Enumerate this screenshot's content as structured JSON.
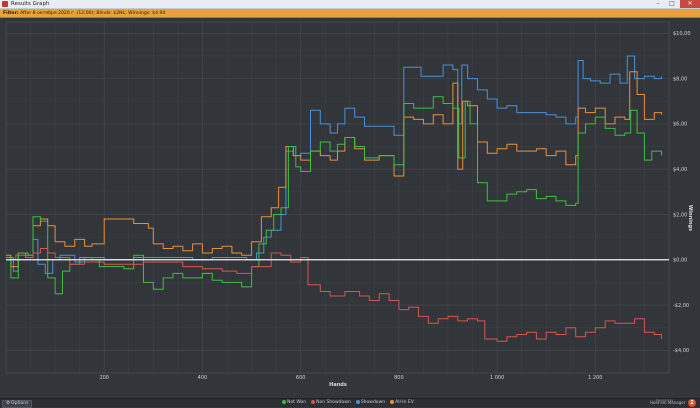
{
  "window": {
    "title": "Results Graph",
    "minimize_glyph": "–",
    "maximize_glyph": "□",
    "close_glyph": "✕"
  },
  "filter": {
    "label": "Filter:",
    "text": "After 8 октября 2020 г. (12:00); Blinds: $2NL; Winnings: $4.94"
  },
  "status": {
    "options_label": "Options",
    "brand_name": "Hold'em Manager",
    "brand_powered": "Powered by",
    "brand_logo": "2"
  },
  "legend": [
    {
      "label": "Net Won",
      "color": "#3fbf3f"
    },
    {
      "label": "Non Showdown",
      "color": "#d9534f"
    },
    {
      "label": "Showdown",
      "color": "#4a90d9"
    },
    {
      "label": "All-In EV",
      "color": "#e8903a"
    }
  ],
  "chart_data": {
    "type": "line",
    "xlabel": "Hands",
    "ylabel": "Winnings",
    "xlim": [
      0,
      1350
    ],
    "ylim": [
      -5,
      10.5
    ],
    "x_ticks": [
      {
        "v": 200,
        "label": "200"
      },
      {
        "v": 400,
        "label": "400"
      },
      {
        "v": 600,
        "label": "600"
      },
      {
        "v": 800,
        "label": "800"
      },
      {
        "v": 1000,
        "label": "1 000"
      },
      {
        "v": 1200,
        "label": "1 200"
      }
    ],
    "y_ticks": [
      {
        "v": 10,
        "label": "$10,00"
      },
      {
        "v": 8,
        "label": "$8,00"
      },
      {
        "v": 6,
        "label": "$6,00"
      },
      {
        "v": 4,
        "label": "$4,00"
      },
      {
        "v": 2,
        "label": "$2,00"
      },
      {
        "v": 0,
        "label": "$0,00"
      },
      {
        "v": -2,
        "label": "-$2,00"
      },
      {
        "v": -4,
        "label": "-$4,00"
      }
    ],
    "grid": true,
    "series": [
      {
        "name": "Showdown",
        "color": "#4a90d9",
        "points": [
          [
            0,
            0.1
          ],
          [
            15,
            -0.5
          ],
          [
            25,
            0.3
          ],
          [
            40,
            0.2
          ],
          [
            55,
            0.9
          ],
          [
            65,
            -0.2
          ],
          [
            80,
            -0.6
          ],
          [
            95,
            0.0
          ],
          [
            110,
            0.2
          ],
          [
            140,
            -0.1
          ],
          [
            160,
            0.1
          ],
          [
            200,
            0.0
          ],
          [
            260,
            0.1
          ],
          [
            300,
            0.1
          ],
          [
            340,
            0.1
          ],
          [
            380,
            0.0
          ],
          [
            420,
            0.1
          ],
          [
            450,
            0.1
          ],
          [
            490,
            0.0
          ],
          [
            510,
            0.3
          ],
          [
            525,
            1.0
          ],
          [
            540,
            1.3
          ],
          [
            560,
            2.0
          ],
          [
            570,
            4.8
          ],
          [
            585,
            4.6
          ],
          [
            600,
            4.7
          ],
          [
            620,
            6.6
          ],
          [
            640,
            6.0
          ],
          [
            660,
            5.6
          ],
          [
            675,
            6.0
          ],
          [
            690,
            6.7
          ],
          [
            710,
            6.3
          ],
          [
            730,
            5.9
          ],
          [
            760,
            5.9
          ],
          [
            790,
            5.5
          ],
          [
            810,
            8.5
          ],
          [
            830,
            8.5
          ],
          [
            845,
            8.1
          ],
          [
            865,
            8.1
          ],
          [
            890,
            8.6
          ],
          [
            910,
            8.4
          ],
          [
            920,
            6.0
          ],
          [
            928,
            8.6
          ],
          [
            940,
            8.0
          ],
          [
            960,
            7.5
          ],
          [
            980,
            7.1
          ],
          [
            1000,
            6.7
          ],
          [
            1020,
            6.8
          ],
          [
            1040,
            6.5
          ],
          [
            1080,
            6.5
          ],
          [
            1100,
            6.4
          ],
          [
            1120,
            6.3
          ],
          [
            1140,
            6.0
          ],
          [
            1160,
            6.3
          ],
          [
            1165,
            8.8
          ],
          [
            1175,
            8.0
          ],
          [
            1190,
            7.9
          ],
          [
            1210,
            7.8
          ],
          [
            1230,
            8.2
          ],
          [
            1250,
            7.8
          ],
          [
            1265,
            9.0
          ],
          [
            1280,
            8.0
          ],
          [
            1300,
            8.1
          ],
          [
            1320,
            8.0
          ],
          [
            1335,
            8.1
          ]
        ]
      },
      {
        "name": "All-In EV",
        "color": "#e8903a",
        "points": [
          [
            0,
            0.2
          ],
          [
            10,
            -0.3
          ],
          [
            25,
            0.3
          ],
          [
            40,
            0.1
          ],
          [
            55,
            1.5
          ],
          [
            70,
            1.8
          ],
          [
            85,
            1.5
          ],
          [
            100,
            0.8
          ],
          [
            120,
            0.6
          ],
          [
            140,
            0.9
          ],
          [
            160,
            0.6
          ],
          [
            175,
            0.7
          ],
          [
            200,
            1.8
          ],
          [
            230,
            1.8
          ],
          [
            260,
            1.6
          ],
          [
            290,
            1.4
          ],
          [
            300,
            0.7
          ],
          [
            320,
            0.5
          ],
          [
            340,
            0.6
          ],
          [
            360,
            0.4
          ],
          [
            380,
            0.7
          ],
          [
            400,
            0.3
          ],
          [
            420,
            0.5
          ],
          [
            440,
            0.6
          ],
          [
            460,
            0.3
          ],
          [
            480,
            0.2
          ],
          [
            500,
            0.8
          ],
          [
            520,
            1.9
          ],
          [
            540,
            2.3
          ],
          [
            555,
            3.2
          ],
          [
            570,
            5.0
          ],
          [
            585,
            4.6
          ],
          [
            600,
            4.4
          ],
          [
            620,
            4.8
          ],
          [
            640,
            4.6
          ],
          [
            660,
            4.4
          ],
          [
            675,
            4.8
          ],
          [
            690,
            5.4
          ],
          [
            710,
            4.9
          ],
          [
            730,
            4.4
          ],
          [
            760,
            4.6
          ],
          [
            790,
            3.7
          ],
          [
            810,
            6.3
          ],
          [
            830,
            6.2
          ],
          [
            850,
            6.0
          ],
          [
            870,
            6.4
          ],
          [
            890,
            6.0
          ],
          [
            910,
            7.8
          ],
          [
            920,
            4.0
          ],
          [
            930,
            7.0
          ],
          [
            940,
            6.8
          ],
          [
            960,
            5.2
          ],
          [
            980,
            4.7
          ],
          [
            1000,
            4.9
          ],
          [
            1020,
            5.1
          ],
          [
            1040,
            4.8
          ],
          [
            1080,
            4.9
          ],
          [
            1100,
            4.6
          ],
          [
            1120,
            4.8
          ],
          [
            1140,
            4.2
          ],
          [
            1160,
            4.6
          ],
          [
            1165,
            6.7
          ],
          [
            1180,
            6.5
          ],
          [
            1200,
            6.7
          ],
          [
            1220,
            6.0
          ],
          [
            1240,
            6.3
          ],
          [
            1260,
            6.2
          ],
          [
            1270,
            8.3
          ],
          [
            1285,
            7.3
          ],
          [
            1300,
            6.2
          ],
          [
            1320,
            6.5
          ],
          [
            1335,
            6.4
          ]
        ]
      },
      {
        "name": "Net Won",
        "color": "#3fbf3f",
        "points": [
          [
            0,
            0.1
          ],
          [
            10,
            -0.8
          ],
          [
            25,
            0.3
          ],
          [
            45,
            0.2
          ],
          [
            55,
            1.9
          ],
          [
            70,
            1.7
          ],
          [
            85,
            -0.8
          ],
          [
            100,
            -1.5
          ],
          [
            115,
            -0.5
          ],
          [
            130,
            -0.2
          ],
          [
            150,
            0.1
          ],
          [
            175,
            0.0
          ],
          [
            190,
            -0.3
          ],
          [
            210,
            -0.3
          ],
          [
            240,
            -0.4
          ],
          [
            260,
            0.2
          ],
          [
            280,
            -1.0
          ],
          [
            300,
            -1.3
          ],
          [
            320,
            -0.8
          ],
          [
            340,
            -0.6
          ],
          [
            360,
            -0.8
          ],
          [
            380,
            -0.8
          ],
          [
            400,
            -0.6
          ],
          [
            420,
            -0.9
          ],
          [
            440,
            -1.0
          ],
          [
            460,
            -1.0
          ],
          [
            480,
            -1.2
          ],
          [
            500,
            -0.3
          ],
          [
            515,
            0.7
          ],
          [
            530,
            1.3
          ],
          [
            545,
            2.0
          ],
          [
            560,
            2.3
          ],
          [
            575,
            5.0
          ],
          [
            590,
            4.1
          ],
          [
            600,
            3.9
          ],
          [
            620,
            4.8
          ],
          [
            640,
            5.2
          ],
          [
            660,
            4.8
          ],
          [
            675,
            5.1
          ],
          [
            690,
            5.4
          ],
          [
            710,
            5.0
          ],
          [
            730,
            4.5
          ],
          [
            760,
            4.6
          ],
          [
            790,
            4.2
          ],
          [
            810,
            6.9
          ],
          [
            830,
            6.7
          ],
          [
            850,
            6.7
          ],
          [
            870,
            7.2
          ],
          [
            890,
            6.9
          ],
          [
            910,
            6.7
          ],
          [
            922,
            4.5
          ],
          [
            935,
            7.0
          ],
          [
            945,
            6.0
          ],
          [
            960,
            3.4
          ],
          [
            980,
            2.6
          ],
          [
            1000,
            2.6
          ],
          [
            1020,
            2.9
          ],
          [
            1040,
            3.0
          ],
          [
            1060,
            3.1
          ],
          [
            1080,
            2.7
          ],
          [
            1100,
            2.8
          ],
          [
            1120,
            2.6
          ],
          [
            1140,
            2.4
          ],
          [
            1160,
            2.5
          ],
          [
            1165,
            5.6
          ],
          [
            1180,
            6.0
          ],
          [
            1200,
            6.3
          ],
          [
            1220,
            5.8
          ],
          [
            1240,
            5.5
          ],
          [
            1260,
            5.6
          ],
          [
            1272,
            6.6
          ],
          [
            1285,
            5.6
          ],
          [
            1300,
            4.4
          ],
          [
            1315,
            4.8
          ],
          [
            1335,
            4.6
          ]
        ]
      },
      {
        "name": "Non Showdown",
        "color": "#d9534f",
        "points": [
          [
            0,
            0.0
          ],
          [
            20,
            0.2
          ],
          [
            40,
            0.1
          ],
          [
            55,
            0.3
          ],
          [
            70,
            0.5
          ],
          [
            85,
            0.3
          ],
          [
            100,
            0.1
          ],
          [
            130,
            -0.2
          ],
          [
            160,
            -0.1
          ],
          [
            200,
            -0.2
          ],
          [
            240,
            -0.2
          ],
          [
            280,
            -0.1
          ],
          [
            320,
            -0.1
          ],
          [
            360,
            -0.3
          ],
          [
            400,
            -0.4
          ],
          [
            440,
            -0.5
          ],
          [
            470,
            -0.6
          ],
          [
            500,
            -0.3
          ],
          [
            540,
            0.3
          ],
          [
            560,
            0.2
          ],
          [
            580,
            -0.1
          ],
          [
            600,
            0.1
          ],
          [
            615,
            -1.1
          ],
          [
            640,
            -1.4
          ],
          [
            660,
            -1.6
          ],
          [
            690,
            -1.4
          ],
          [
            720,
            -1.6
          ],
          [
            740,
            -1.8
          ],
          [
            760,
            -1.5
          ],
          [
            780,
            -1.8
          ],
          [
            800,
            -2.2
          ],
          [
            820,
            -2.1
          ],
          [
            840,
            -2.5
          ],
          [
            860,
            -2.8
          ],
          [
            880,
            -2.6
          ],
          [
            900,
            -2.5
          ],
          [
            920,
            -2.7
          ],
          [
            940,
            -2.6
          ],
          [
            960,
            -2.7
          ],
          [
            975,
            -3.5
          ],
          [
            1000,
            -3.6
          ],
          [
            1020,
            -3.4
          ],
          [
            1040,
            -3.3
          ],
          [
            1060,
            -3.2
          ],
          [
            1080,
            -3.5
          ],
          [
            1100,
            -3.2
          ],
          [
            1120,
            -3.3
          ],
          [
            1140,
            -3.0
          ],
          [
            1160,
            -3.4
          ],
          [
            1180,
            -3.2
          ],
          [
            1200,
            -3.0
          ],
          [
            1220,
            -2.7
          ],
          [
            1240,
            -2.8
          ],
          [
            1260,
            -2.8
          ],
          [
            1280,
            -2.6
          ],
          [
            1300,
            -3.2
          ],
          [
            1320,
            -3.3
          ],
          [
            1335,
            -3.5
          ]
        ]
      }
    ]
  }
}
